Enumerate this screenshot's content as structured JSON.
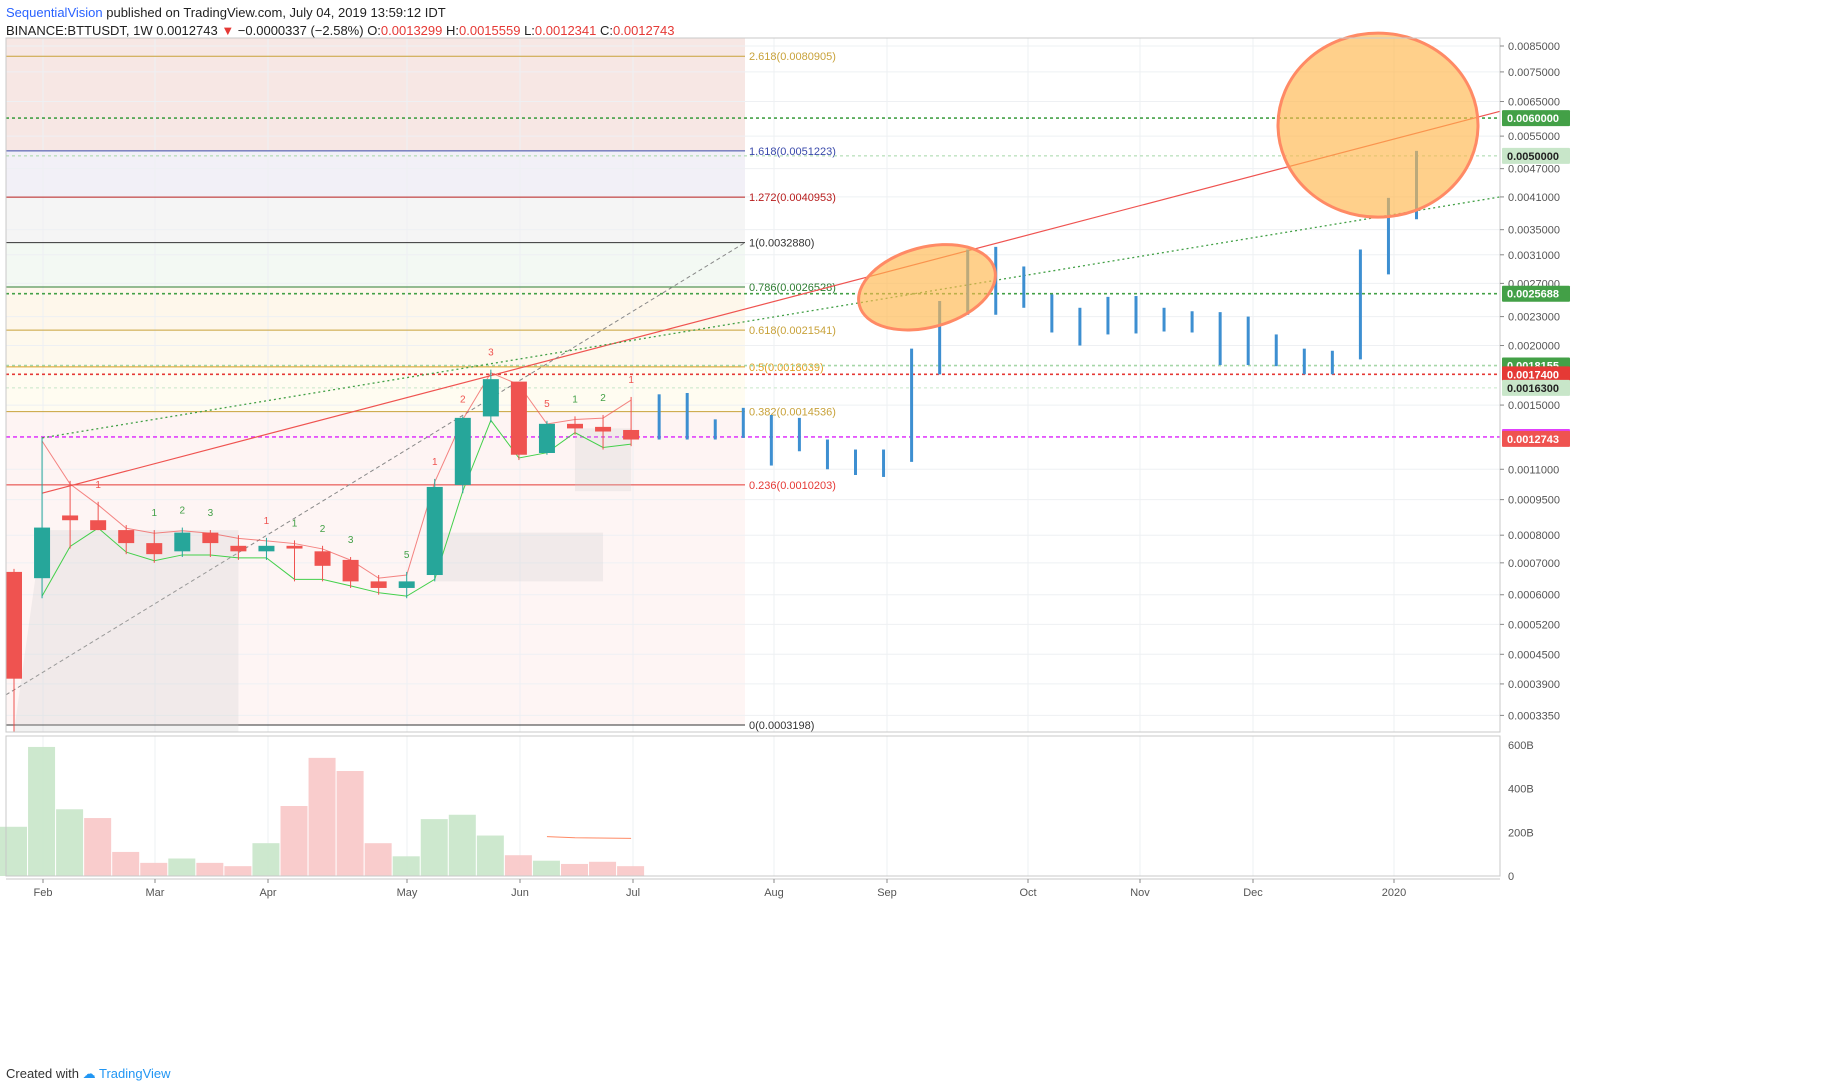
{
  "header": {
    "author": "SequentialVision",
    "published_text": " published on TradingView.com, July 04, 2019 13:59:12 IDT",
    "symbol": "BINANCE:BTTUSDT, 1W ",
    "last": "0.0012743",
    "arrow": " ▼ ",
    "change": "−0.0000337 (−2.58%)",
    "o_label": " O:",
    "o": "0.0013299",
    "h_label": " H:",
    "h": "0.0015559",
    "l_label": " L:",
    "l": "0.0012341",
    "c_label": " C:",
    "c": "0.0012743"
  },
  "footer": {
    "created_with": "Created with ",
    "brand": "TradingView"
  },
  "colors": {
    "up": "#26a69a",
    "down": "#ef5350",
    "projection": "#3d8fd1",
    "ellipse": "#ffb74d",
    "trend": "#ef5350",
    "fib_gold": "#c8a23a"
  },
  "chart_data": {
    "type": "candlestick",
    "price_scale": "log",
    "ylim": [
      0.0003,
      0.0089
    ],
    "time_axis_labels": [
      "Feb",
      "Mar",
      "Apr",
      "May",
      "Jun",
      "Jul",
      "Aug",
      "Sep",
      "Oct",
      "Nov",
      "Dec",
      "2020"
    ],
    "price_axis_labels": [
      "0.0085000",
      "0.0075000",
      "0.0065000",
      "0.0055000",
      "0.0047000",
      "0.0041000",
      "0.0035000",
      "0.0031000",
      "0.0027000",
      "0.0023000",
      "0.0020000",
      "0.0015000",
      "0.0011000",
      "0.0009500",
      "0.0008000",
      "0.0007000",
      "0.0006000",
      "0.0005200",
      "0.0004500",
      "0.0003900",
      "0.0003350"
    ],
    "candles": [
      {
        "o": 0.00067,
        "h": 0.00068,
        "l": 0.00031,
        "c": 0.0004
      },
      {
        "o": 0.00065,
        "h": 0.00128,
        "l": 0.00059,
        "c": 0.00083
      },
      {
        "o": 0.00088,
        "h": 0.00104,
        "l": 0.00075,
        "c": 0.00086
      },
      {
        "o": 0.00086,
        "h": 0.00094,
        "l": 0.00082,
        "c": 0.00082
      },
      {
        "o": 0.00082,
        "h": 0.00084,
        "l": 0.00073,
        "c": 0.00077
      },
      {
        "o": 0.00077,
        "h": 0.00082,
        "l": 0.0007,
        "c": 0.00073
      },
      {
        "o": 0.00074,
        "h": 0.00083,
        "l": 0.00072,
        "c": 0.00081
      },
      {
        "o": 0.00081,
        "h": 0.00082,
        "l": 0.00072,
        "c": 0.00077
      },
      {
        "o": 0.00076,
        "h": 0.0008,
        "l": 0.00071,
        "c": 0.00074
      },
      {
        "o": 0.00074,
        "h": 0.00079,
        "l": 0.00071,
        "c": 0.00076
      },
      {
        "o": 0.00076,
        "h": 0.00078,
        "l": 0.00064,
        "c": 0.00075
      },
      {
        "o": 0.00074,
        "h": 0.00076,
        "l": 0.00064,
        "c": 0.00069
      },
      {
        "o": 0.00071,
        "h": 0.00072,
        "l": 0.00062,
        "c": 0.00064
      },
      {
        "o": 0.00064,
        "h": 0.00066,
        "l": 0.0006,
        "c": 0.00062
      },
      {
        "o": 0.00062,
        "h": 0.00067,
        "l": 0.00059,
        "c": 0.00064
      },
      {
        "o": 0.00066,
        "h": 0.00105,
        "l": 0.00064,
        "c": 0.00101
      },
      {
        "o": 0.00102,
        "h": 0.00142,
        "l": 0.00098,
        "c": 0.00141
      },
      {
        "o": 0.00142,
        "h": 0.00178,
        "l": 0.00138,
        "c": 0.0017
      },
      {
        "o": 0.00168,
        "h": 0.00168,
        "l": 0.00115,
        "c": 0.00118
      },
      {
        "o": 0.00119,
        "h": 0.00139,
        "l": 0.00118,
        "c": 0.00137
      },
      {
        "o": 0.00137,
        "h": 0.00142,
        "l": 0.0013,
        "c": 0.00134
      },
      {
        "o": 0.00135,
        "h": 0.00143,
        "l": 0.00121,
        "c": 0.00132
      },
      {
        "o": 0.00133,
        "h": 0.00156,
        "l": 0.00123,
        "c": 0.00127
      }
    ],
    "projection_bars": [
      {
        "lo": 0.00127,
        "hi": 0.00158
      },
      {
        "lo": 0.00127,
        "hi": 0.00159
      },
      {
        "lo": 0.00127,
        "hi": 0.0014
      },
      {
        "lo": 0.00128,
        "hi": 0.00148
      },
      {
        "lo": 0.00112,
        "hi": 0.00143
      },
      {
        "lo": 0.0012,
        "hi": 0.00141
      },
      {
        "lo": 0.0011,
        "hi": 0.00127
      },
      {
        "lo": 0.00107,
        "hi": 0.00121
      },
      {
        "lo": 0.00106,
        "hi": 0.00121
      },
      {
        "lo": 0.00114,
        "hi": 0.00197
      },
      {
        "lo": 0.00174,
        "hi": 0.00248
      },
      {
        "lo": 0.00232,
        "hi": 0.00318
      },
      {
        "lo": 0.00232,
        "hi": 0.00322
      },
      {
        "lo": 0.0024,
        "hi": 0.00293
      },
      {
        "lo": 0.00213,
        "hi": 0.00256
      },
      {
        "lo": 0.002,
        "hi": 0.0024
      },
      {
        "lo": 0.00211,
        "hi": 0.00253
      },
      {
        "lo": 0.00212,
        "hi": 0.00254
      },
      {
        "lo": 0.00214,
        "hi": 0.0024
      },
      {
        "lo": 0.00213,
        "hi": 0.00236
      },
      {
        "lo": 0.00182,
        "hi": 0.00235
      },
      {
        "lo": 0.00182,
        "hi": 0.0023
      },
      {
        "lo": 0.00181,
        "hi": 0.00211
      },
      {
        "lo": 0.00174,
        "hi": 0.00197
      },
      {
        "lo": 0.00174,
        "hi": 0.00195
      },
      {
        "lo": 0.00187,
        "hi": 0.00318
      },
      {
        "lo": 0.00282,
        "hi": 0.00408
      },
      {
        "lo": 0.00368,
        "hi": 0.00512
      }
    ],
    "fib_levels": [
      {
        "label": "2.618(0.0080905)",
        "value": 0.0080905,
        "color": "#c8a23a"
      },
      {
        "label": "1.618(0.0051223)",
        "value": 0.0051223,
        "color": "#3949ab"
      },
      {
        "label": "1.272(0.0040953)",
        "value": 0.0040953,
        "color": "#b71c1c"
      },
      {
        "label": "1(0.0032880)",
        "value": 0.003288,
        "color": "#333333"
      },
      {
        "label": "0.786(0.0026528)",
        "value": 0.0026528,
        "color": "#2e7d32"
      },
      {
        "label": "0.618(0.0021541)",
        "value": 0.0021541,
        "color": "#c8a23a"
      },
      {
        "label": "0.5(0.0018039)",
        "value": 0.0018039,
        "color": "#e0a020"
      },
      {
        "label": "0.382(0.0014536)",
        "value": 0.0014536,
        "color": "#c8a23a"
      },
      {
        "label": "0.236(0.0010203)",
        "value": 0.0010203,
        "color": "#e53935"
      },
      {
        "label": "0(0.0003198)",
        "value": 0.0003198,
        "color": "#333333"
      }
    ],
    "price_tags": [
      {
        "label": "0.0060000",
        "value": 0.006,
        "bg": "#43a047",
        "fg": "#ffffff",
        "line": "#43a047"
      },
      {
        "label": "0.0050000",
        "value": 0.005,
        "bg": "#c8e6c9",
        "fg": "#222222",
        "line": "#a5d6a7"
      },
      {
        "label": "0.0025688",
        "value": 0.0025688,
        "bg": "#43a047",
        "fg": "#ffffff",
        "line": "#43a047"
      },
      {
        "label": "0.0018155",
        "value": 0.0018155,
        "bg": "#43a047",
        "fg": "#ffffff",
        "line": "#a5d6a7"
      },
      {
        "label": "0.0017400",
        "value": 0.00174,
        "bg": "#e53935",
        "fg": "#ffffff",
        "line": "#e53935"
      },
      {
        "label": "0.0016300",
        "value": 0.00163,
        "bg": "#c8e6c9",
        "fg": "#222222",
        "line": "#c8e6c9"
      },
      {
        "label": "0.0012858",
        "value": 0.0012858,
        "bg": "#e040fb",
        "fg": "#ffffff",
        "line": "#e040fb"
      },
      {
        "label": "0.0012743",
        "value": 0.0012743,
        "bg": "#ef5350",
        "fg": "#ffffff",
        "line": null
      }
    ],
    "sequential_counts": [
      {
        "text": "1",
        "candle": 3,
        "above": true,
        "color": "#ef5350"
      },
      {
        "text": "1",
        "candle": 5,
        "above": true,
        "color": "#43a047"
      },
      {
        "text": "2",
        "candle": 6,
        "above": true,
        "color": "#43a047"
      },
      {
        "text": "3",
        "candle": 7,
        "above": true,
        "color": "#43a047"
      },
      {
        "text": "1",
        "candle": 9,
        "above": true,
        "color": "#ef5350"
      },
      {
        "text": "1",
        "candle": 10,
        "above": true,
        "color": "#43a047"
      },
      {
        "text": "2",
        "candle": 11,
        "above": true,
        "color": "#43a047"
      },
      {
        "text": "3",
        "candle": 12,
        "above": true,
        "color": "#43a047"
      },
      {
        "text": "5",
        "candle": 14,
        "above": true,
        "color": "#43a047"
      },
      {
        "text": "1",
        "candle": 15,
        "above": true,
        "color": "#ef5350"
      },
      {
        "text": "2",
        "candle": 16,
        "above": true,
        "color": "#ef5350"
      },
      {
        "text": "3",
        "candle": 17,
        "above": true,
        "color": "#ef5350"
      },
      {
        "text": "5",
        "candle": 19,
        "above": true,
        "color": "#ef5350"
      },
      {
        "text": "1",
        "candle": 20,
        "above": true,
        "color": "#43a047"
      },
      {
        "text": "2",
        "candle": 21,
        "above": true,
        "color": "#43a047"
      },
      {
        "text": "1",
        "candle": 22,
        "above": true,
        "color": "#ef5350"
      }
    ],
    "volume": {
      "axis_labels": [
        "600B",
        "400B",
        "200B",
        "0"
      ],
      "values": [
        225,
        590,
        305,
        265,
        110,
        60,
        80,
        60,
        45,
        150,
        320,
        540,
        480,
        150,
        90,
        260,
        280,
        185,
        95,
        70,
        55,
        65,
        45
      ],
      "up": [
        true,
        true,
        true,
        false,
        false,
        false,
        true,
        false,
        false,
        true,
        false,
        false,
        false,
        false,
        true,
        true,
        true,
        true,
        false,
        true,
        false,
        false,
        false
      ],
      "ma": [
        180,
        175,
        172
      ],
      "vmax": 640
    }
  }
}
